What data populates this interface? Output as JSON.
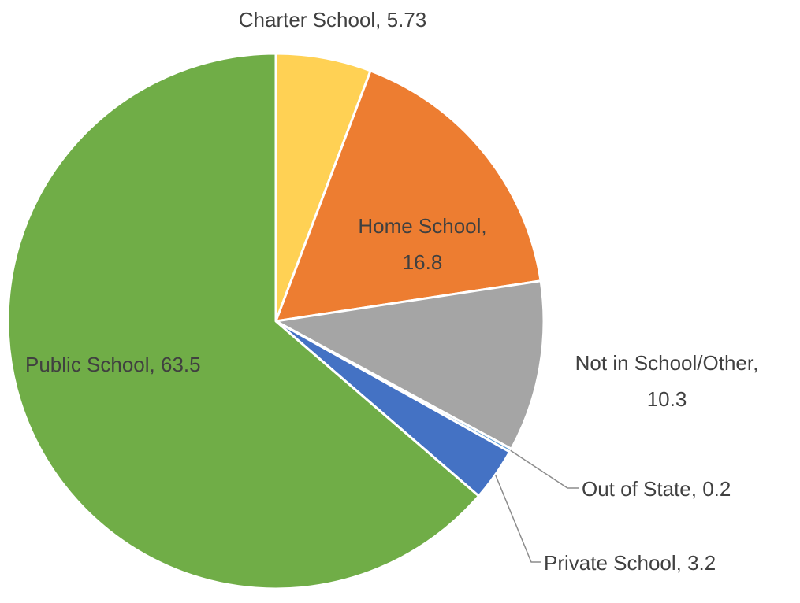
{
  "chart_data": {
    "type": "pie",
    "title": "",
    "start_angle_deg": 0,
    "direction": "clockwise",
    "colors": {
      "Charter School": "#FFD154",
      "Home School": "#ED7D31",
      "Not in School/Other": "#A5A5A5",
      "Out of State": "#5B9BD5",
      "Private School": "#4472C4",
      "Public School": "#70AD47"
    },
    "slices": [
      {
        "label": "Charter School",
        "value": 5.73,
        "display": "Charter School, 5.73"
      },
      {
        "label": "Home School",
        "value": 16.8,
        "display_line1": "Home School,",
        "display_line2": "16.8"
      },
      {
        "label": "Not in School/Other",
        "value": 10.3,
        "display_line1": "Not in School/Other,",
        "display_line2": "10.3"
      },
      {
        "label": "Out of State",
        "value": 0.2,
        "display": "Out of State, 0.2"
      },
      {
        "label": "Private School",
        "value": 3.2,
        "display": "Private School, 3.2"
      },
      {
        "label": "Public School",
        "value": 63.5,
        "display": "Public School, 63.5"
      }
    ]
  }
}
